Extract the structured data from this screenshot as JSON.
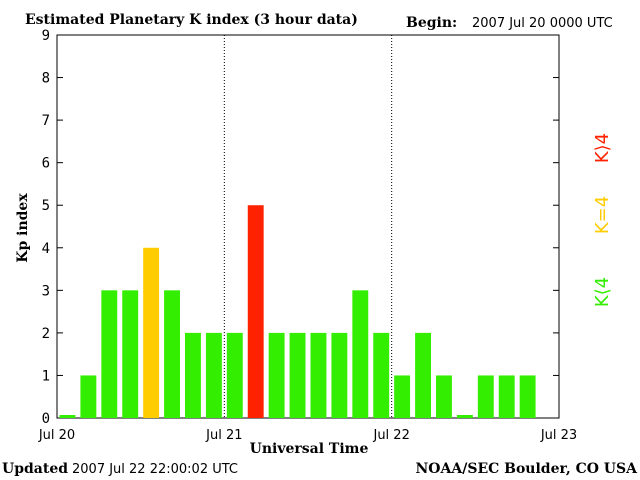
{
  "chart_data": {
    "type": "bar",
    "title": "Estimated Planetary K index (3 hour data)",
    "begin_label": "Begin:",
    "begin_value": "2007 Jul 20 0000 UTC",
    "xlabel": "Universal Time",
    "ylabel": "Kp index",
    "ylim": [
      0,
      9
    ],
    "yticks": [
      "0",
      "1",
      "2",
      "3",
      "4",
      "5",
      "6",
      "7",
      "8",
      "9"
    ],
    "xticks": [
      "Jul 20",
      "Jul 21",
      "Jul 22",
      "Jul 23"
    ],
    "grid": "vertical dotted day separators",
    "legend": [
      {
        "label": "K<4",
        "color": "#33ee00"
      },
      {
        "label": "K=4",
        "color": "#ffcc00"
      },
      {
        "label": "K>4",
        "color": "#ff2200"
      }
    ],
    "values": [
      0,
      1,
      3,
      3,
      4,
      3,
      2,
      2,
      2,
      5,
      2,
      2,
      2,
      2,
      3,
      2,
      1,
      2,
      1,
      0,
      1,
      1,
      1
    ]
  },
  "footer": {
    "updated_label": "Updated",
    "updated_value": "2007 Jul 22 22:00:02 UTC",
    "source": "NOAA/SEC Boulder, CO USA"
  }
}
